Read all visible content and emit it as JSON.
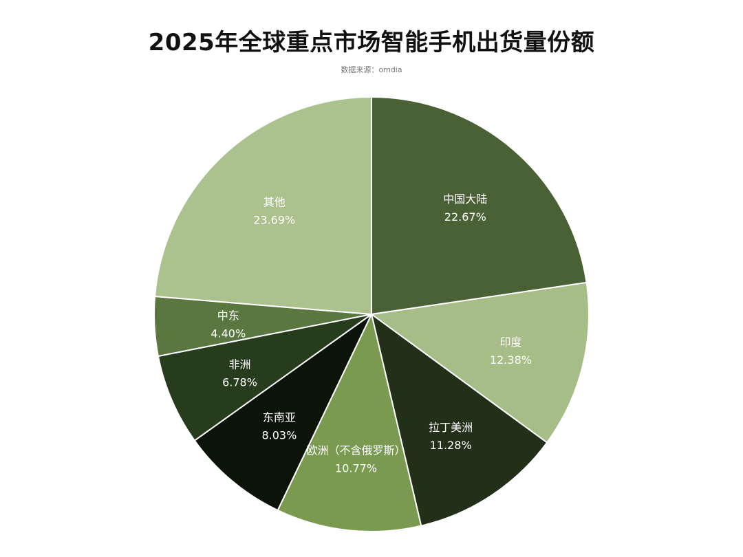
{
  "chart": {
    "title": "2025年全球重点市场智能手机出货量份额",
    "subtitle": "数据来源：omdia"
  },
  "chart_data": {
    "type": "pie",
    "title": "2025年全球重点市场智能手机出货量份额",
    "subtitle": "数据来源：omdia",
    "slices": [
      {
        "name": "中国大陆",
        "value": 22.67,
        "label": "22.67%",
        "color": "#4a6135"
      },
      {
        "name": "印度",
        "value": 12.38,
        "label": "12.38%",
        "color": "#a6bd87"
      },
      {
        "name": "拉丁美洲",
        "value": 11.28,
        "label": "11.28%",
        "color": "#22301a"
      },
      {
        "name": "欧洲（不含俄罗斯）",
        "value": 10.77,
        "label": "10.77%",
        "color": "#7a9a50"
      },
      {
        "name": "东南亚",
        "value": 8.03,
        "label": "8.03%",
        "color": "#0c140a"
      },
      {
        "name": "非洲",
        "value": 6.78,
        "label": "6.78%",
        "color": "#263c1c"
      },
      {
        "name": "中东",
        "value": 4.4,
        "label": "4.40%",
        "color": "#5a7742"
      },
      {
        "name": "其他",
        "value": 23.69,
        "label": "23.69%",
        "color": "#abc28f"
      }
    ]
  }
}
